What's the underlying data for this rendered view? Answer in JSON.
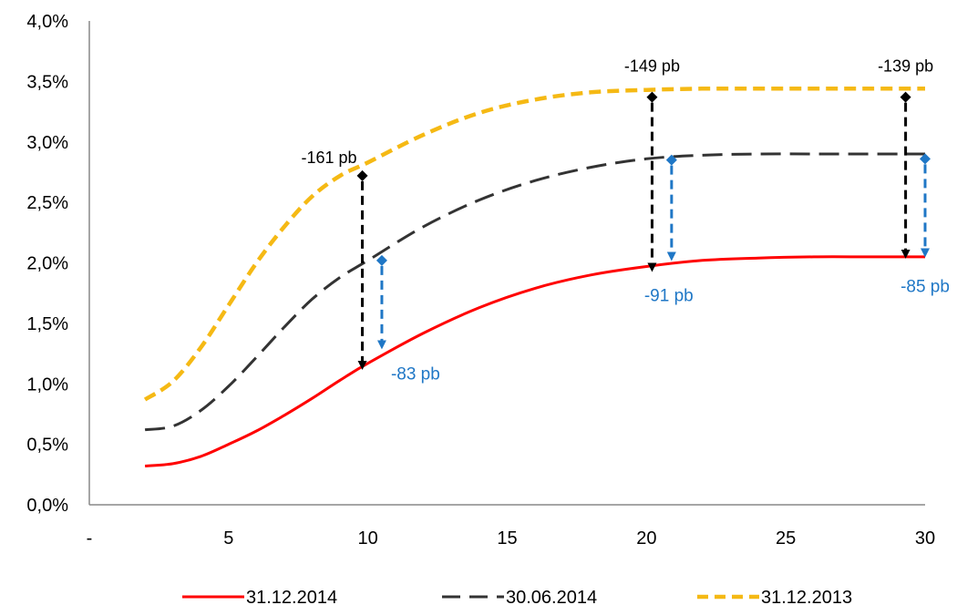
{
  "chart_data": {
    "type": "line",
    "x_tick_labels": [
      "-",
      "5",
      "10",
      "15",
      "20",
      "25",
      "30"
    ],
    "x_tick_values": [
      0,
      5,
      10,
      15,
      20,
      25,
      30
    ],
    "xlim": [
      0,
      30
    ],
    "y_tick_labels": [
      "0,0%",
      "0,5%",
      "1,0%",
      "1,5%",
      "2,0%",
      "2,5%",
      "3,0%",
      "3,5%",
      "4,0%"
    ],
    "y_tick_values": [
      0,
      0.5,
      1.0,
      1.5,
      2.0,
      2.5,
      3.0,
      3.5,
      4.0
    ],
    "ylim": [
      0,
      4.0
    ],
    "grid": false,
    "legend_position": "bottom",
    "series": [
      {
        "name": "31.12.2014",
        "color": "#ff0000",
        "style": "solid",
        "x": [
          2,
          3,
          4,
          5,
          6,
          7,
          8,
          9,
          10,
          12,
          14,
          16,
          18,
          20,
          22,
          24,
          26,
          28,
          30
        ],
        "values": [
          0.32,
          0.34,
          0.4,
          0.5,
          0.61,
          0.74,
          0.88,
          1.03,
          1.17,
          1.42,
          1.63,
          1.79,
          1.9,
          1.97,
          2.02,
          2.04,
          2.05,
          2.05,
          2.05
        ]
      },
      {
        "name": "30.06.2014",
        "color": "#333333",
        "style": "dashed",
        "x": [
          2,
          3,
          4,
          5,
          6,
          7,
          8,
          9,
          10,
          12,
          14,
          16,
          18,
          20,
          22,
          24,
          26,
          28,
          30
        ],
        "values": [
          0.62,
          0.65,
          0.78,
          0.98,
          1.22,
          1.47,
          1.7,
          1.88,
          2.02,
          2.3,
          2.52,
          2.68,
          2.79,
          2.86,
          2.89,
          2.9,
          2.9,
          2.9,
          2.9
        ]
      },
      {
        "name": "31.12.2013",
        "color": "#f5b914",
        "style": "dashed",
        "x": [
          2,
          3,
          4,
          5,
          6,
          7,
          8,
          9,
          10,
          12,
          14,
          16,
          18,
          20,
          22,
          24,
          26,
          28,
          30
        ],
        "values": [
          0.87,
          1.02,
          1.3,
          1.65,
          2.0,
          2.3,
          2.55,
          2.72,
          2.83,
          3.06,
          3.24,
          3.35,
          3.41,
          3.43,
          3.44,
          3.44,
          3.44,
          3.44,
          3.44
        ]
      }
    ],
    "annotations": [
      {
        "label": "-161 pb",
        "kind": "black",
        "x": 9.8,
        "from": 2.72,
        "to": 1.13
      },
      {
        "label": "-149 pb",
        "kind": "black",
        "x": 20.2,
        "from": 3.37,
        "to": 1.94
      },
      {
        "label": "-139 pb",
        "kind": "black",
        "x": 29.3,
        "from": 3.37,
        "to": 2.05
      },
      {
        "label": "-83 pb",
        "kind": "blue",
        "x": 10.5,
        "from": 2.02,
        "to": 1.3
      },
      {
        "label": "-91 pb",
        "kind": "blue",
        "x": 20.9,
        "from": 2.85,
        "to": 2.03
      },
      {
        "label": "-85 pb",
        "kind": "blue",
        "x": 30.0,
        "from": 2.86,
        "to": 2.06
      }
    ]
  }
}
